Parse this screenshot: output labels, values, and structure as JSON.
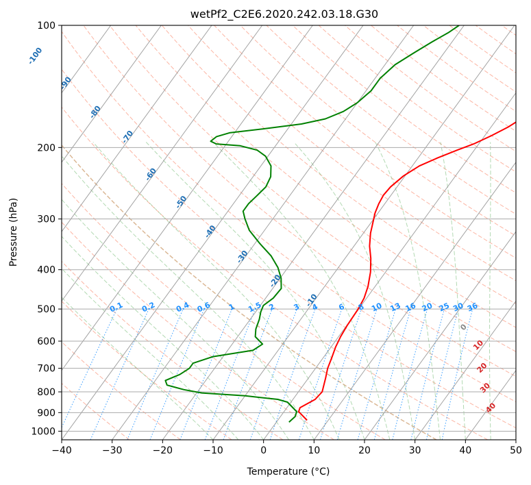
{
  "chart_data": {
    "type": "skew-t",
    "title": "wetPf2_C2E6.2020.242.03.18.G30",
    "xlabel": "Temperature (°C)",
    "ylabel": "Pressure (hPa)",
    "xlim": [
      -40,
      50
    ],
    "ylim": [
      1050,
      100
    ],
    "y_scale": "log",
    "grid": true,
    "x_ticks": [
      "−40",
      "−30",
      "−20",
      "−10",
      "0",
      "10",
      "20",
      "30",
      "40",
      "50"
    ],
    "y_ticks": [
      "100",
      "200",
      "300",
      "400",
      "500",
      "600",
      "700",
      "800",
      "900",
      "1000"
    ],
    "series": [
      {
        "color": "#ff0000",
        "points": [
          [
            5.8,
            940
          ],
          [
            4.2,
            915
          ],
          [
            2.9,
            895
          ],
          [
            2.6,
            875
          ],
          [
            4.4,
            835
          ],
          [
            4.7,
            800
          ],
          [
            3.4,
            740
          ],
          [
            2.4,
            700
          ],
          [
            1.7,
            660
          ],
          [
            0.9,
            620
          ],
          [
            0.4,
            585
          ],
          [
            0.1,
            550
          ],
          [
            -0.1,
            500
          ],
          [
            -0.5,
            470
          ],
          [
            -1.4,
            440
          ],
          [
            -3.0,
            405
          ],
          [
            -4.9,
            375
          ],
          [
            -6.9,
            350
          ],
          [
            -8.6,
            325
          ],
          [
            -9.7,
            305
          ],
          [
            -10.6,
            290
          ],
          [
            -11.2,
            275
          ],
          [
            -11.5,
            262
          ],
          [
            -11.3,
            250
          ],
          [
            -10.3,
            235
          ],
          [
            -8.6,
            222
          ],
          [
            -6.1,
            212
          ],
          [
            -3.4,
            203
          ],
          [
            -1.0,
            196
          ],
          [
            1.3,
            187
          ],
          [
            3.4,
            178
          ],
          [
            5.1,
            168
          ],
          [
            5.9,
            158
          ],
          [
            6.5,
            150
          ],
          [
            7.0,
            142
          ],
          [
            8.0,
            133
          ],
          [
            9.1,
            125
          ],
          [
            10.0,
            117
          ],
          [
            10.6,
            110
          ],
          [
            11.1,
            104
          ],
          [
            11.4,
            100
          ]
        ]
      },
      {
        "color": "#008000",
        "points": [
          [
            2.5,
            950
          ],
          [
            2.9,
            920
          ],
          [
            2.5,
            895
          ],
          [
            0.7,
            868
          ],
          [
            -0.7,
            848
          ],
          [
            -3.0,
            835
          ],
          [
            -10.0,
            818
          ],
          [
            -19.0,
            805
          ],
          [
            -23.0,
            790
          ],
          [
            -27.0,
            770
          ],
          [
            -28.0,
            750
          ],
          [
            -26.0,
            725
          ],
          [
            -25.0,
            700
          ],
          [
            -25.0,
            680
          ],
          [
            -22.0,
            655
          ],
          [
            -15.0,
            632
          ],
          [
            -14.0,
            610
          ],
          [
            -16.5,
            585
          ],
          [
            -17.5,
            560
          ],
          [
            -18.2,
            530
          ],
          [
            -19.0,
            508
          ],
          [
            -19.4,
            490
          ],
          [
            -18.5,
            470
          ],
          [
            -18.3,
            445
          ],
          [
            -19.8,
            420
          ],
          [
            -22.0,
            395
          ],
          [
            -25.0,
            370
          ],
          [
            -29.0,
            345
          ],
          [
            -33.0,
            320
          ],
          [
            -35.5,
            300
          ],
          [
            -37.0,
            287
          ],
          [
            -37.0,
            275
          ],
          [
            -36.5,
            263
          ],
          [
            -36.0,
            250
          ],
          [
            -36.5,
            236
          ],
          [
            -38.0,
            222
          ],
          [
            -40.5,
            210
          ],
          [
            -43.0,
            203
          ],
          [
            -47.0,
            198
          ],
          [
            -52.0,
            196
          ],
          [
            -53.5,
            193
          ],
          [
            -53.0,
            188
          ],
          [
            -51.0,
            184
          ],
          [
            -45.0,
            180
          ],
          [
            -38.0,
            175
          ],
          [
            -34.0,
            170
          ],
          [
            -31.5,
            163
          ],
          [
            -30.0,
            155
          ],
          [
            -29.0,
            145
          ],
          [
            -29.0,
            135
          ],
          [
            -28.0,
            125
          ],
          [
            -26.0,
            117
          ],
          [
            -24.0,
            110
          ],
          [
            -22.0,
            104
          ],
          [
            -21.0,
            100
          ]
        ]
      }
    ],
    "isotherm_labels": [
      "-100",
      "-90",
      "-80",
      "-70",
      "-60",
      "-50",
      "-40",
      "-30",
      "-20",
      "-10"
    ],
    "mixing_ratio_labels": [
      "0.1",
      "0.2",
      "0.4",
      "0.6",
      "1",
      "1.5",
      "2",
      "3",
      "4",
      "6",
      "8",
      "10",
      "13",
      "16",
      "20",
      "25",
      "30",
      "36"
    ],
    "moist_adiabat_labels": [
      "0",
      "10",
      "20",
      "30",
      "40"
    ]
  }
}
